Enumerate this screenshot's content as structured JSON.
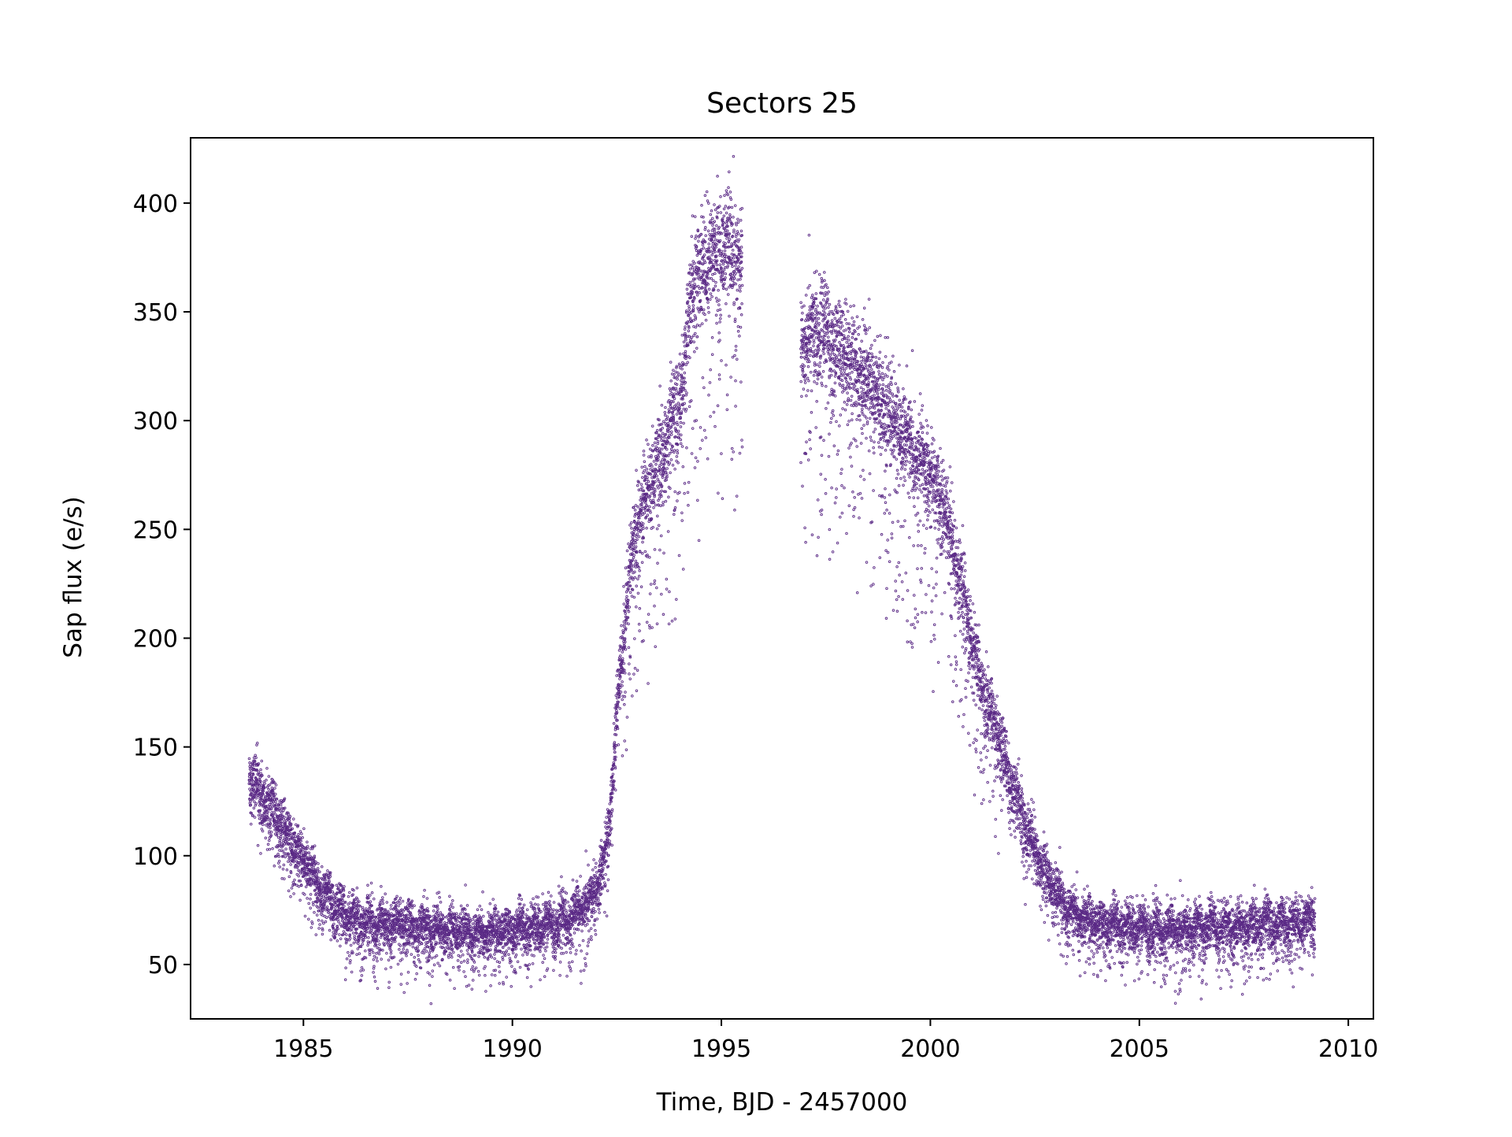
{
  "chart_data": {
    "type": "scatter",
    "title": "Sectors 25",
    "xlabel": "Time, BJD - 2457000",
    "ylabel": "Sap flux (e/s)",
    "xlim": [
      1982.3,
      2010.6
    ],
    "ylim": [
      25,
      430
    ],
    "x_ticks": [
      1985,
      1990,
      1995,
      2000,
      2005,
      2010
    ],
    "y_ticks": [
      50,
      100,
      150,
      200,
      250,
      300,
      350,
      400
    ],
    "grid": false,
    "legend": "none",
    "marker_color": "#5b2a86",
    "series": [
      {
        "name": "SAP flux",
        "segments": [
          {
            "x": [
              1983.7,
              1984.0,
              1984.3,
              1984.6,
              1985.0,
              1985.4,
              1985.8,
              1986.2,
              1986.6,
              1987.0,
              1987.5,
              1988.0,
              1988.5,
              1989.0,
              1989.5,
              1990.0,
              1990.5,
              1991.0,
              1991.5,
              1991.9,
              1992.2,
              1992.4,
              1992.6,
              1992.8,
              1993.0,
              1993.3,
              1993.6,
              1993.9,
              1994.1,
              1994.3,
              1994.6,
              1994.9,
              1995.2,
              1995.5
            ],
            "y": [
              137,
              128,
              120,
              110,
              98,
              86,
              76,
              71,
              69,
              68,
              67,
              67,
              66,
              65,
              65,
              66,
              67,
              69,
              74,
              82,
              96,
              135,
              190,
              230,
              255,
              272,
              284,
              300,
              320,
              362,
              372,
              378,
              380,
              372
            ]
          },
          {
            "x": [
              1996.9,
              1997.2,
              1997.5,
              1998.0,
              1998.5,
              1999.0,
              1999.5,
              2000.0,
              2000.4,
              2000.8,
              2001.2,
              2001.6,
              2002.0,
              2002.4,
              2002.8,
              2003.2,
              2003.6,
              2004.0,
              2004.5,
              2005.0,
              2005.5,
              2006.0,
              2006.5,
              2007.0,
              2007.5,
              2008.0,
              2008.5,
              2009.0,
              2009.2
            ],
            "y": [
              335,
              343,
              340,
              328,
              318,
              305,
              290,
              275,
              255,
              220,
              180,
              155,
              130,
              108,
              90,
              78,
              72,
              69,
              68,
              67,
              67,
              67,
              67,
              68,
              68,
              68,
              69,
              70,
              72
            ]
          }
        ]
      }
    ]
  }
}
